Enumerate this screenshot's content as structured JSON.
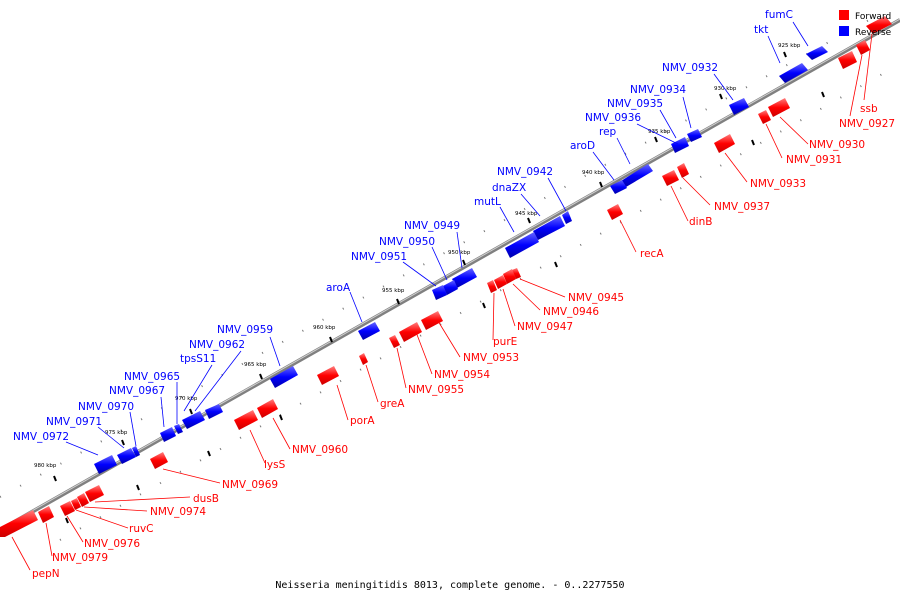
{
  "caption": "Neisseria meningitidis 8013, complete genome. - 0..2277550",
  "legend": [
    {
      "label": "Forward",
      "color": "#ff0000"
    },
    {
      "label": "Reverse",
      "color": "#0000ff"
    }
  ],
  "colors": {
    "forward": "#ff0000",
    "reverse": "#0000ff",
    "backbone": "#777777"
  },
  "ticks": [
    "925 kbp",
    "930 kbp",
    "935 kbp",
    "940 kbp",
    "945 kbp",
    "950 kbp",
    "955 kbp",
    "960 kbp",
    "965 kbp",
    "970 kbp",
    "975 kbp",
    "980 kbp"
  ],
  "reverse_genes": [
    "fumC",
    "tkt",
    "NMV_0932",
    "NMV_0934",
    "NMV_0935",
    "NMV_0936",
    "rep",
    "aroD",
    "NMV_0942",
    "dnaZX",
    "mutL",
    "NMV_0949",
    "NMV_0950",
    "NMV_0951",
    "aroA",
    "NMV_0959",
    "NMV_0962",
    "tpsS11",
    "NMV_0965",
    "NMV_0967",
    "NMV_0970",
    "NMV_0971",
    "NMV_0972"
  ],
  "forward_genes": [
    "ssb",
    "NMV_0927",
    "NMV_0930",
    "NMV_0931",
    "NMV_0933",
    "NMV_0937",
    "dinB",
    "recA",
    "NMV_0945",
    "NMV_0946",
    "NMV_0947",
    "purE",
    "NMV_0953",
    "NMV_0954",
    "NMV_0955",
    "greA",
    "porA",
    "NMV_0960",
    "lysS",
    "NMV_0969",
    "dusB",
    "NMV_0974",
    "ruvC",
    "NMV_0976",
    "NMV_0979",
    "pepN"
  ]
}
